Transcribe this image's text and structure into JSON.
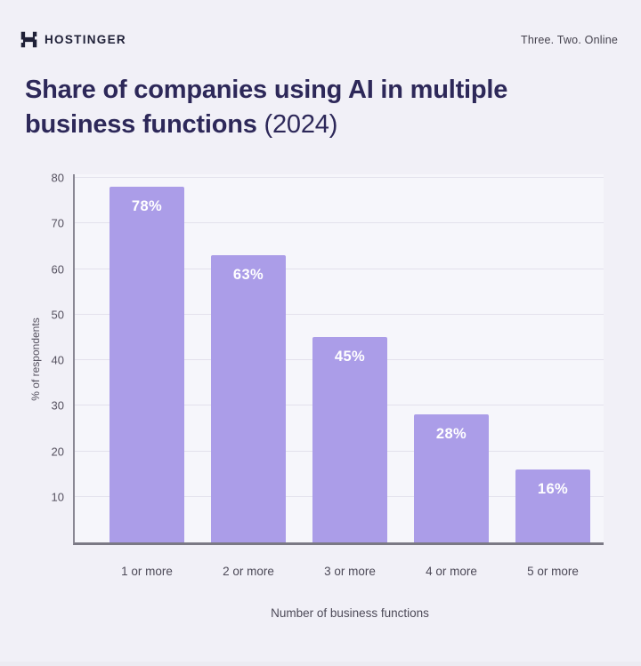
{
  "header": {
    "brand": "HOSTINGER",
    "tagline": "Three. Two. Online",
    "logo_icon": "hostinger-h-logo"
  },
  "title": {
    "line1": "Share of companies using AI in multiple",
    "line2_bold": "business functions",
    "line2_regular": "(2024)"
  },
  "chart_data": {
    "type": "bar",
    "title": "Share of companies using AI in multiple business functions (2024)",
    "categories": [
      "1 or more",
      "2 or more",
      "3 or more",
      "4 or more",
      "5 or more"
    ],
    "values": [
      78,
      63,
      45,
      28,
      16
    ],
    "bar_labels": [
      "78%",
      "63%",
      "45%",
      "28%",
      "16%"
    ],
    "xlabel": "Number of business functions",
    "ylabel": "% of respondents",
    "yticks": [
      10,
      20,
      30,
      40,
      50,
      60,
      70,
      80
    ],
    "ylim": [
      0,
      81.4
    ],
    "grid": "horizontal-only",
    "legend": "none",
    "bar_label_position": "inside-top",
    "colors": {
      "bar": "#ab9de8",
      "bar_label": "#ffffff",
      "gridline": "#e3e1ec",
      "axis_line": "#8a8894",
      "tick_text": "#55515f",
      "title_text": "#2d2859",
      "page_background": "#f1f0f7",
      "plot_background": "#f6f6fb",
      "brand_text": "#1f2037"
    }
  }
}
